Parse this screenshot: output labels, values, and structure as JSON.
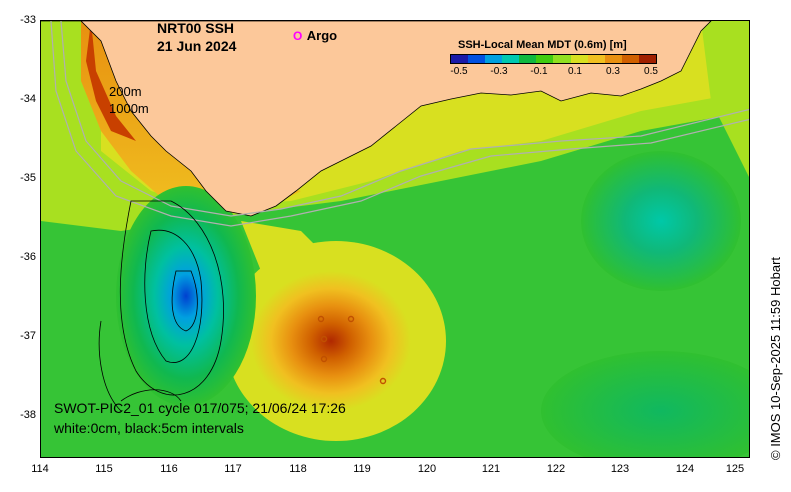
{
  "title": {
    "line1": "NRT00 SSH",
    "line2": "21 Jun 2024"
  },
  "legend": {
    "argo_symbol": "O",
    "argo_label": "Argo"
  },
  "colorbar": {
    "title": "SSH-Local Mean MDT (0.6m) [m]",
    "ticks": [
      "-0.5",
      "-0.3",
      "-0.1",
      "0.1",
      "0.3",
      "0.5"
    ],
    "colors": [
      "#1a1aa8",
      "#0050e0",
      "#00a0e0",
      "#00c8b0",
      "#10b840",
      "#40cc10",
      "#90e020",
      "#d8e020",
      "#f0c020",
      "#e89010",
      "#d06000",
      "#a02000"
    ]
  },
  "isobaths": {
    "label_200": "200m",
    "label_1000": "1000m"
  },
  "annotation": {
    "line1": "SWOT-PIC2_01 cycle 017/075; 21/06/24 17:26",
    "line2": "white:0cm, black:5cm intervals"
  },
  "credit": "© IMOS 10-Sep-2025 11:59 Hobart",
  "axes": {
    "x_ticks": [
      "114",
      "115",
      "116",
      "117",
      "118",
      "119",
      "120",
      "121",
      "122",
      "123",
      "124",
      "125"
    ],
    "y_ticks": [
      "-33",
      "-34",
      "-35",
      "-36",
      "-37",
      "-38"
    ]
  },
  "colors": {
    "land": "#fcc89a",
    "ocean_green": "#36c436",
    "argo": "#ff00ff"
  }
}
